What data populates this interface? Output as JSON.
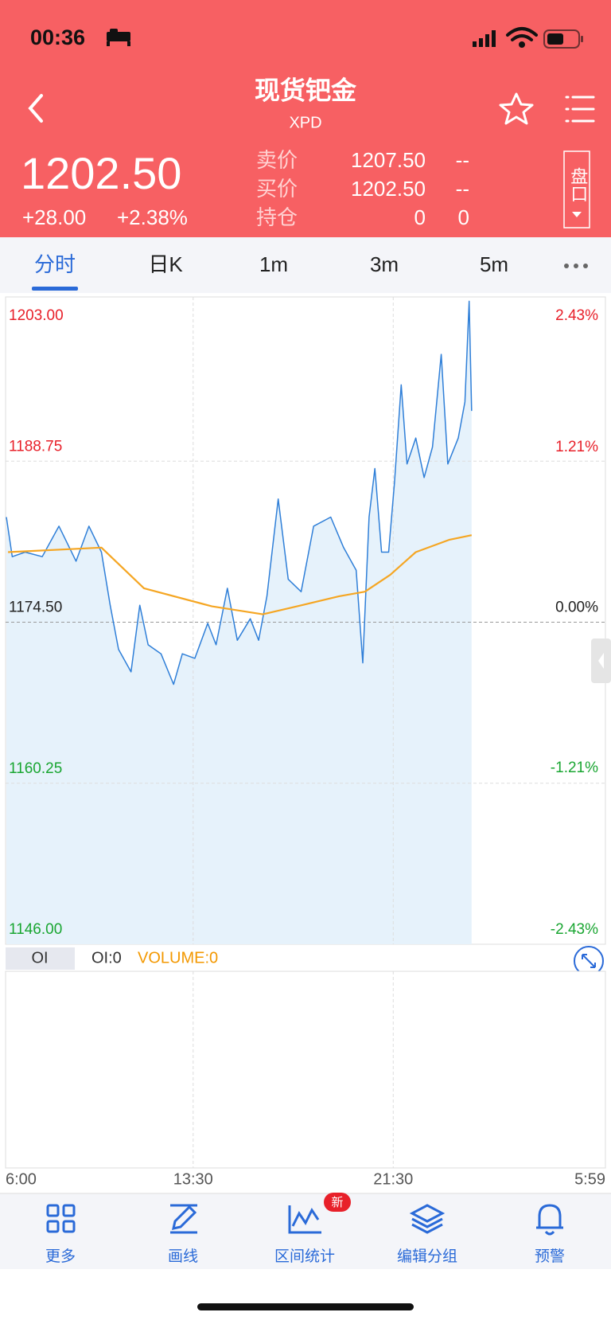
{
  "status_bar": {
    "time": "00:36"
  },
  "header": {
    "title": "现货钯金",
    "subtitle": "XPD"
  },
  "quote": {
    "price": "1202.50",
    "change": "+28.00",
    "change_percent": "+2.38%",
    "book": [
      {
        "label": "卖价",
        "value": "1207.50",
        "extra": "--"
      },
      {
        "label": "买价",
        "value": "1202.50",
        "extra": "--"
      },
      {
        "label": "持仓",
        "value": "0",
        "extra": "0"
      }
    ],
    "panel_button": "盘口"
  },
  "tabs": [
    "分时",
    "日K",
    "1m",
    "3m",
    "5m"
  ],
  "chart_data": {
    "type": "line",
    "xlim": [
      0,
      1439
    ],
    "xticks": [
      {
        "value": 0,
        "label": "6:00"
      },
      {
        "value": 450,
        "label": "13:30"
      },
      {
        "value": 930,
        "label": "21:30"
      },
      {
        "value": 1439,
        "label": "5:59"
      }
    ],
    "ylim": [
      1146,
      1203
    ],
    "yticks": [
      {
        "value": 1203,
        "label": "1203.00"
      },
      {
        "value": 1188.75,
        "label": "1188.75"
      },
      {
        "value": 1174.5,
        "label": "1174.50"
      },
      {
        "value": 1160.25,
        "label": "1160.25"
      },
      {
        "value": 1146,
        "label": "1146.00"
      }
    ],
    "y2lim": [
      -2.43,
      2.43
    ],
    "y2ticks": [
      {
        "value": 2.43,
        "label": "2.43%"
      },
      {
        "value": 1.21,
        "label": "1.21%"
      },
      {
        "value": 0,
        "label": "0.00%"
      },
      {
        "value": -1.21,
        "label": "-1.21%"
      },
      {
        "value": -2.43,
        "label": "-2.43%"
      }
    ],
    "grid": true,
    "series": [
      {
        "color": "#2f7fd8",
        "area": true,
        "x": [
          2,
          16,
          47,
          88,
          128,
          169,
          200,
          230,
          251,
          271,
          301,
          322,
          342,
          373,
          403,
          424,
          454,
          485,
          505,
          532,
          556,
          587,
          607,
          627,
          654,
          678,
          709,
          739,
          780,
          811,
          841,
          857,
          872,
          886,
          902,
          919,
          933,
          949,
          963,
          984,
          1004,
          1024,
          1045,
          1061,
          1086,
          1102,
          1112,
          1118
        ],
        "values": [
          1183.8,
          1180.3,
          1180.7,
          1180.3,
          1183.0,
          1179.9,
          1183.0,
          1180.7,
          1176.0,
          1172.1,
          1170.1,
          1176.0,
          1172.5,
          1171.7,
          1169.0,
          1171.7,
          1171.3,
          1174.4,
          1172.5,
          1177.5,
          1172.9,
          1174.8,
          1172.9,
          1176.8,
          1185.4,
          1178.3,
          1177.2,
          1183.0,
          1183.8,
          1181.1,
          1179.1,
          1170.9,
          1183.8,
          1188.1,
          1180.7,
          1180.7,
          1186.9,
          1195.5,
          1188.5,
          1190.8,
          1187.3,
          1190.0,
          1198.2,
          1188.5,
          1190.8,
          1194.0,
          1202.9,
          1193.2
        ]
      },
      {
        "color": "#f5a623",
        "area": false,
        "x": [
          6,
          230,
          332,
          495,
          617,
          699,
          800,
          862,
          923,
          984,
          1065,
          1118
        ],
        "values": [
          1180.7,
          1181.1,
          1177.5,
          1175.9,
          1175.2,
          1175.9,
          1176.8,
          1177.2,
          1178.7,
          1180.7,
          1181.8,
          1182.2
        ]
      }
    ]
  },
  "indicator": {
    "tab": "OI",
    "oi": "OI:0",
    "volume": "VOLUME:0"
  },
  "toolbar": [
    {
      "label": "更多"
    },
    {
      "label": "画线"
    },
    {
      "label": "区间统计",
      "badge": "新"
    },
    {
      "label": "编辑分组"
    },
    {
      "label": "预警"
    }
  ]
}
